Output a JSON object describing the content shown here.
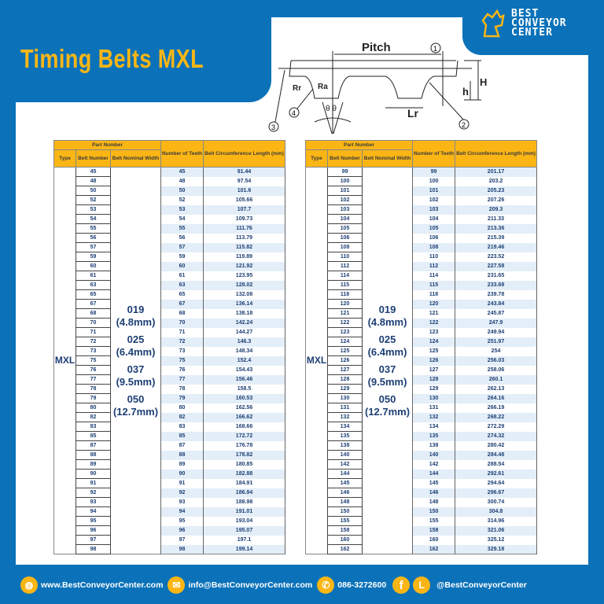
{
  "title": "Timing Belts MXL",
  "logo": {
    "line1": "BEST",
    "line2": "CONVEYOR",
    "line3": "CENTER"
  },
  "diagram": {
    "pitch": "Pitch",
    "h_small": "h",
    "h_big": "H",
    "lr": "Lr",
    "rr": "Rr",
    "ra": "Ra",
    "c1": "1",
    "c2": "2",
    "c3": "3",
    "c4": "4",
    "theta": "θ θ"
  },
  "table_headers": {
    "part_number": "Part Number",
    "type": "Type",
    "belt_number": "Belt Number",
    "nominal_width": "Belt Nominal Width",
    "teeth": "Number of Teeth",
    "length": "Belt Circumference Length (mm)"
  },
  "type": "MXL",
  "widths": [
    {
      "code": "019",
      "mm": "(4.8mm)"
    },
    {
      "code": "025",
      "mm": "(6.4mm)"
    },
    {
      "code": "037",
      "mm": "(9.5mm)"
    },
    {
      "code": "050",
      "mm": "(12.7mm)"
    }
  ],
  "left_rows": [
    [
      "45",
      "45",
      "91.44"
    ],
    [
      "48",
      "48",
      "97.54"
    ],
    [
      "50",
      "50",
      "101.6"
    ],
    [
      "52",
      "52",
      "105.66"
    ],
    [
      "53",
      "53",
      "107.7"
    ],
    [
      "54",
      "54",
      "109.73"
    ],
    [
      "55",
      "55",
      "111.76"
    ],
    [
      "56",
      "56",
      "113.79"
    ],
    [
      "57",
      "57",
      "115.82"
    ],
    [
      "59",
      "59",
      "119.89"
    ],
    [
      "60",
      "60",
      "121.92"
    ],
    [
      "61",
      "61",
      "123.95"
    ],
    [
      "63",
      "63",
      "128.02"
    ],
    [
      "65",
      "65",
      "132.08"
    ],
    [
      "67",
      "67",
      "136.14"
    ],
    [
      "68",
      "68",
      "138.18"
    ],
    [
      "70",
      "70",
      "142.24"
    ],
    [
      "71",
      "71",
      "144.27"
    ],
    [
      "72",
      "72",
      "146.3"
    ],
    [
      "73",
      "73",
      "148.34"
    ],
    [
      "75",
      "75",
      "152.4"
    ],
    [
      "76",
      "76",
      "154.43"
    ],
    [
      "77",
      "77",
      "156.46"
    ],
    [
      "78",
      "78",
      "158.5"
    ],
    [
      "79",
      "79",
      "160.53"
    ],
    [
      "80",
      "80",
      "162.56"
    ],
    [
      "82",
      "82",
      "166.62"
    ],
    [
      "83",
      "83",
      "168.66"
    ],
    [
      "85",
      "85",
      "172.72"
    ],
    [
      "87",
      "87",
      "176.78"
    ],
    [
      "88",
      "88",
      "178.82"
    ],
    [
      "89",
      "89",
      "180.85"
    ],
    [
      "90",
      "90",
      "182.88"
    ],
    [
      "91",
      "91",
      "184.91"
    ],
    [
      "92",
      "92",
      "186.94"
    ],
    [
      "93",
      "93",
      "188.98"
    ],
    [
      "94",
      "94",
      "191.01"
    ],
    [
      "95",
      "95",
      "193.04"
    ],
    [
      "96",
      "96",
      "195.07"
    ],
    [
      "97",
      "97",
      "197.1"
    ],
    [
      "98",
      "98",
      "199.14"
    ]
  ],
  "right_rows": [
    [
      "99",
      "99",
      "201.17"
    ],
    [
      "100",
      "100",
      "203.2"
    ],
    [
      "101",
      "101",
      "205.23"
    ],
    [
      "102",
      "102",
      "207.26"
    ],
    [
      "103",
      "103",
      "209.3"
    ],
    [
      "104",
      "104",
      "211.33"
    ],
    [
      "105",
      "105",
      "213.36"
    ],
    [
      "106",
      "106",
      "215.39"
    ],
    [
      "108",
      "108",
      "219.46"
    ],
    [
      "110",
      "110",
      "223.52"
    ],
    [
      "112",
      "112",
      "227.58"
    ],
    [
      "114",
      "114",
      "231.65"
    ],
    [
      "115",
      "115",
      "233.68"
    ],
    [
      "118",
      "118",
      "239.78"
    ],
    [
      "120",
      "120",
      "243.84"
    ],
    [
      "121",
      "121",
      "245.87"
    ],
    [
      "122",
      "122",
      "247.9"
    ],
    [
      "123",
      "123",
      "249.94"
    ],
    [
      "124",
      "124",
      "251.97"
    ],
    [
      "125",
      "125",
      "254"
    ],
    [
      "126",
      "126",
      "256.03"
    ],
    [
      "127",
      "127",
      "258.06"
    ],
    [
      "128",
      "128",
      "260.1"
    ],
    [
      "129",
      "129",
      "262.13"
    ],
    [
      "130",
      "130",
      "264.16"
    ],
    [
      "131",
      "131",
      "266.19"
    ],
    [
      "132",
      "132",
      "268.22"
    ],
    [
      "134",
      "134",
      "272.29"
    ],
    [
      "135",
      "135",
      "274.32"
    ],
    [
      "138",
      "138",
      "280.42"
    ],
    [
      "140",
      "140",
      "284.48"
    ],
    [
      "142",
      "142",
      "288.54"
    ],
    [
      "144",
      "144",
      "292.61"
    ],
    [
      "145",
      "145",
      "294.64"
    ],
    [
      "146",
      "146",
      "296.67"
    ],
    [
      "148",
      "148",
      "300.74"
    ],
    [
      "150",
      "150",
      "304.8"
    ],
    [
      "155",
      "155",
      "314.96"
    ],
    [
      "158",
      "158",
      "321.06"
    ],
    [
      "160",
      "160",
      "325.12"
    ],
    [
      "162",
      "162",
      "329.18"
    ]
  ],
  "footer": {
    "website": "www.BestConveyorCenter.com",
    "email": "info@BestConveyorCenter.com",
    "phone": "086-3272600",
    "social": "@BestConveyorCenter",
    "facebook_letter": "f",
    "line_letter": "L"
  },
  "colors": {
    "brand_blue": "#0b72b9",
    "accent_yellow": "#fbb615",
    "text_navy": "#1d3f74"
  }
}
